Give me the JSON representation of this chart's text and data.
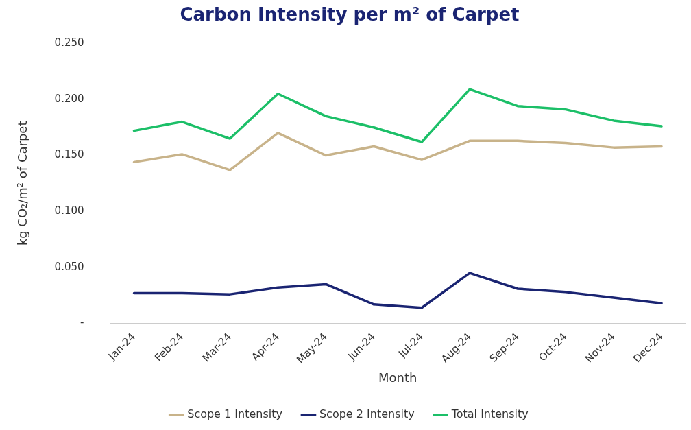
{
  "chart_data": {
    "type": "line",
    "title": "Carbon Intensity per m² of Carpet",
    "xlabel": "Month",
    "ylabel": "kg CO₂/m² of Carpet",
    "categories": [
      "Jan-24",
      "Feb-24",
      "Mar-24",
      "Apr-24",
      "May-24",
      "Jun-24",
      "Jul-24",
      "Aug-24",
      "Sep-24",
      "Oct-24",
      "Nov-24",
      "Dec-24"
    ],
    "series": [
      {
        "name": "Scope 1 Intensity",
        "color": "#c8b38a",
        "values": [
          0.144,
          0.151,
          0.137,
          0.17,
          0.15,
          0.158,
          0.146,
          0.163,
          0.163,
          0.161,
          0.157,
          0.158
        ]
      },
      {
        "name": "Scope 2 Intensity",
        "color": "#1a2472",
        "values": [
          0.027,
          0.027,
          0.026,
          0.032,
          0.035,
          0.017,
          0.014,
          0.045,
          0.031,
          0.028,
          0.023,
          0.018
        ]
      },
      {
        "name": "Total Intensity",
        "color": "#1cbf68",
        "values": [
          0.172,
          0.18,
          0.165,
          0.205,
          0.185,
          0.175,
          0.162,
          0.209,
          0.194,
          0.191,
          0.181,
          0.176
        ]
      }
    ],
    "ylim": [
      0,
      0.25
    ],
    "yticks": [
      {
        "value": 0,
        "label": "-"
      },
      {
        "value": 0.05,
        "label": "0.050"
      },
      {
        "value": 0.1,
        "label": "0.100"
      },
      {
        "value": 0.15,
        "label": "0.150"
      },
      {
        "value": 0.2,
        "label": "0.200"
      },
      {
        "value": 0.25,
        "label": "0.250"
      }
    ],
    "grid": false,
    "legend": "bottom",
    "marker": "none",
    "line_style": "solid"
  }
}
